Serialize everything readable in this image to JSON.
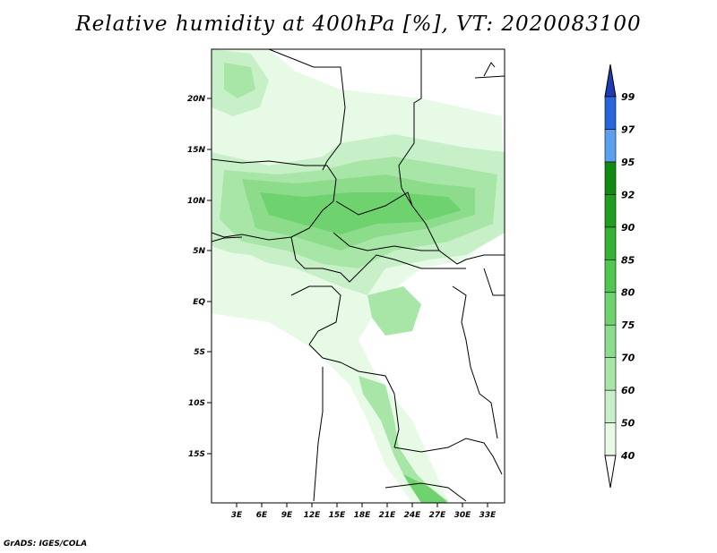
{
  "title": "Relative humidity at 400hPa [%], VT: 2020083100",
  "footer": "GrADS: IGES/COLA",
  "map": {
    "lat_labels": [
      "20N",
      "15N",
      "10N",
      "5N",
      "EQ",
      "5S",
      "10S",
      "15S"
    ],
    "lon_labels": [
      "3E",
      "6E",
      "9E",
      "12E",
      "15E",
      "18E",
      "21E",
      "24E",
      "27E",
      "30E",
      "33E"
    ]
  },
  "colorbar": {
    "levels": [
      "40",
      "50",
      "60",
      "70",
      "75",
      "80",
      "85",
      "90",
      "92",
      "95",
      "97",
      "99"
    ],
    "colors": [
      "#ffffff",
      "#e6fae6",
      "#c8f0c8",
      "#a8e6a8",
      "#8cdc8c",
      "#6ed26e",
      "#50c850",
      "#32b432",
      "#1ea01e",
      "#0f8c0f",
      "#5aa0f0",
      "#2864dc",
      "#1e3cb4"
    ]
  }
}
